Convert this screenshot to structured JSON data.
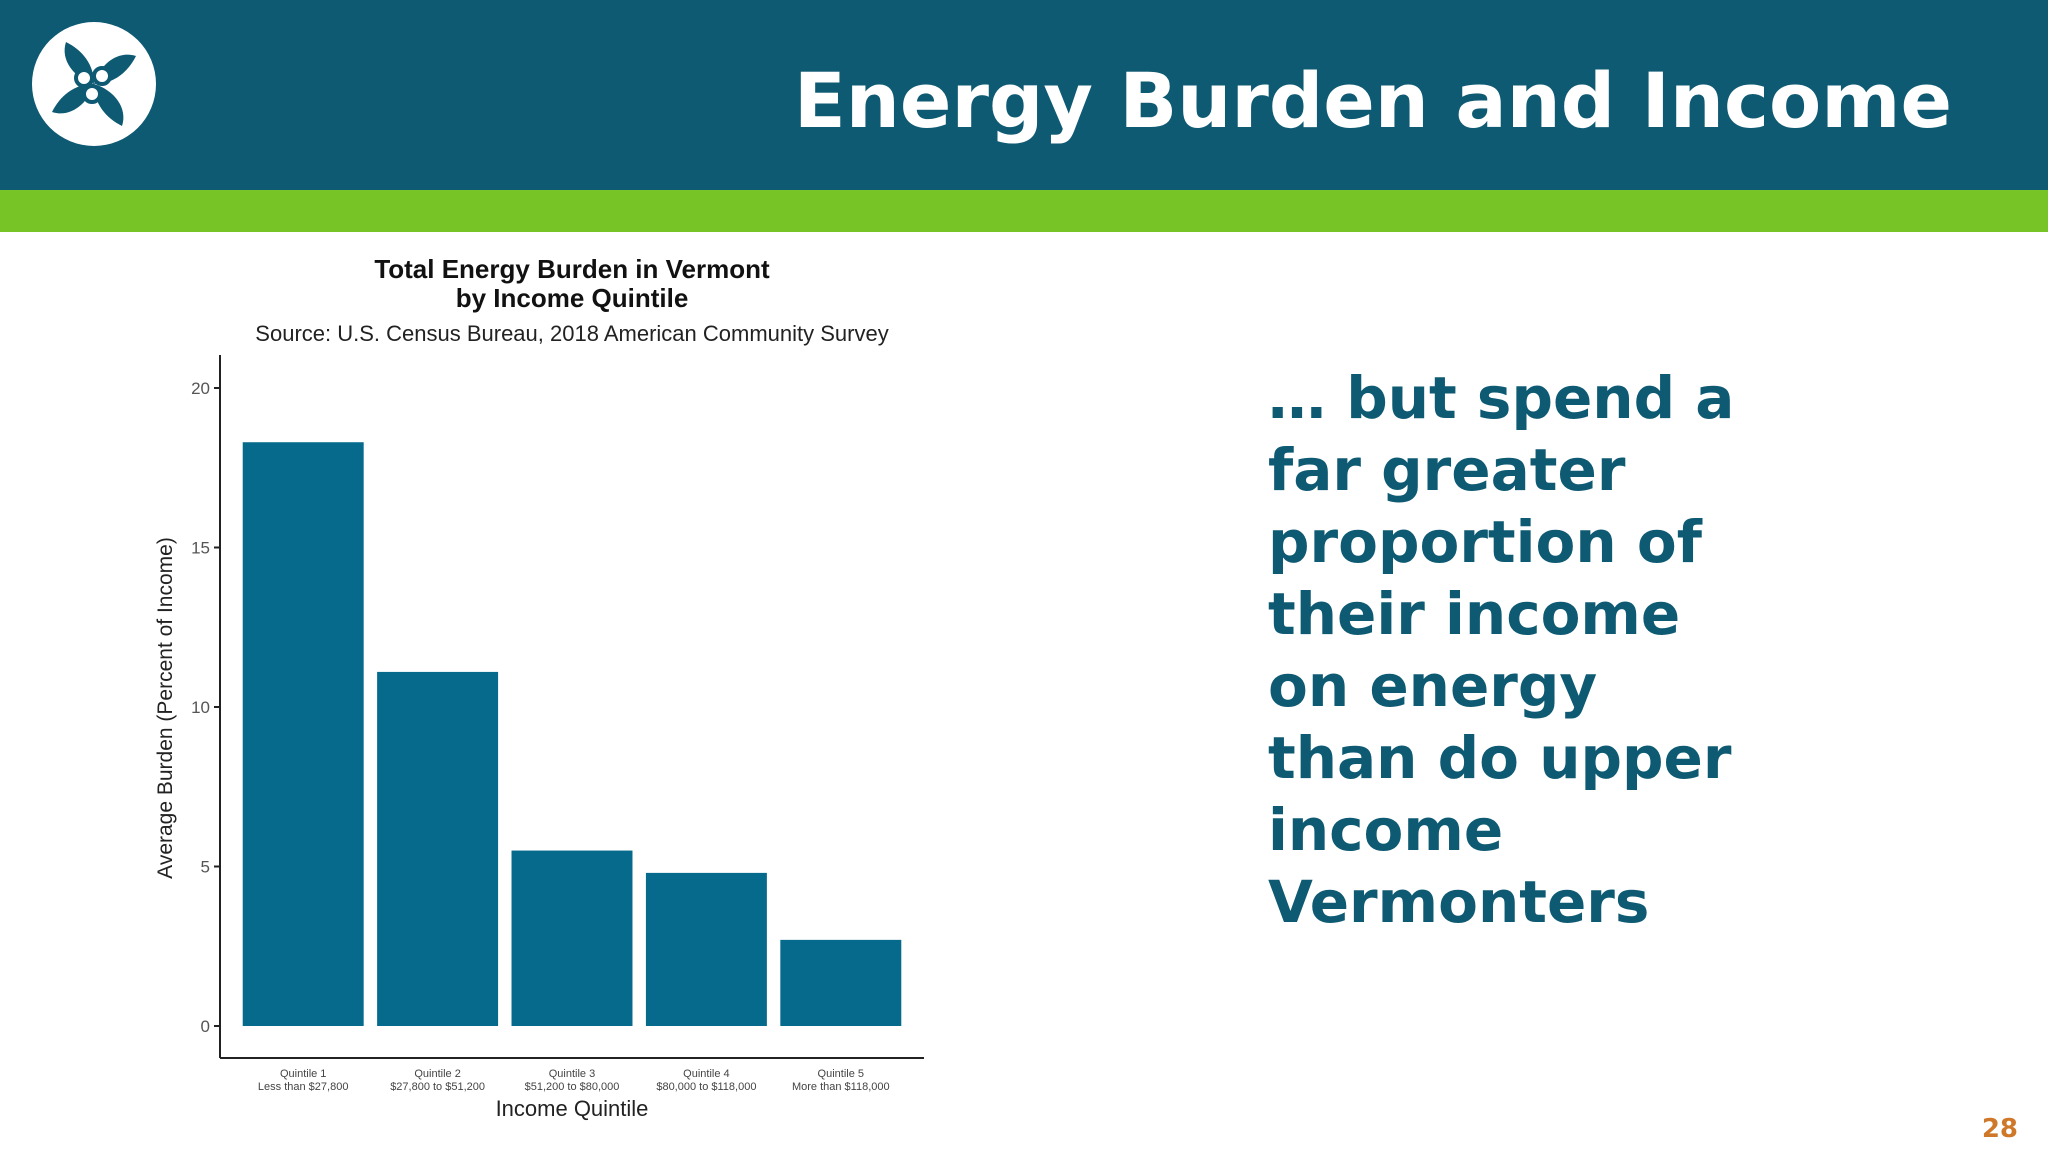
{
  "slide": {
    "title": "Energy Burden and Income",
    "callout": "… but spend a\nfar greater\nproportion of\ntheir income\non energy\nthan do upper\nincome\nVermonters",
    "page_number": "28"
  },
  "colors": {
    "header_bg": "#0e5a73",
    "accent_green": "#76c425",
    "bar_fill": "#056a8c",
    "callout_text": "#0e5a73",
    "page_number": "#d0782a"
  },
  "logo": {
    "icon": "pinwheel-logo-icon"
  },
  "chart_data": {
    "type": "bar",
    "title": "Total Energy Burden in Vermont",
    "title_line2": "by Income Quintile",
    "subtitle": "Source: U.S. Census Bureau, 2018 American Community Survey",
    "xlabel": "Income Quintile",
    "ylabel": "Average Burden (Percent of Income)",
    "categories": [
      "Quintile 1",
      "Quintile 2",
      "Quintile 3",
      "Quintile 4",
      "Quintile 5"
    ],
    "category_sublabels": [
      "Less than $27,800",
      "$27,800 to $51,200",
      "$51,200 to $80,000",
      "$80,000 to $118,000",
      "More than $118,000"
    ],
    "values": [
      18.3,
      11.1,
      5.5,
      4.8,
      2.7
    ],
    "ylim": [
      0,
      20
    ],
    "yticks": [
      "0",
      "5",
      "10",
      "15",
      "20"
    ],
    "grid": false,
    "legend": "none"
  }
}
